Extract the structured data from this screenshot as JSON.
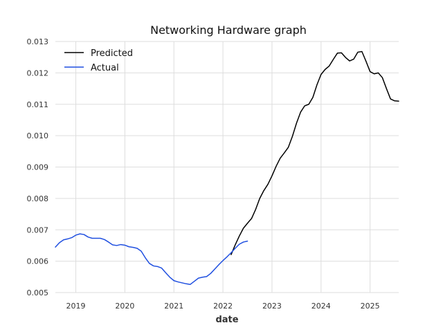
{
  "chart_data": {
    "type": "line",
    "title": "Networking Hardware graph",
    "xlabel": "date",
    "ylabel": "",
    "x_ticks": [
      "2019",
      "2020",
      "2021",
      "2022",
      "2023",
      "2024",
      "2025"
    ],
    "y_ticks": [
      "0.005",
      "0.006",
      "0.007",
      "0.008",
      "0.009",
      "0.010",
      "0.011",
      "0.012",
      "0.013"
    ],
    "xlim": [
      "2018-08",
      "2025-08"
    ],
    "ylim": [
      0.005,
      0.013
    ],
    "grid": true,
    "legend_position": "top-left",
    "series": [
      {
        "name": "Predicted",
        "color": "#000000",
        "x": [
          "2022-03",
          "2022-04",
          "2022-05",
          "2022-06",
          "2022-07",
          "2022-08",
          "2022-09",
          "2022-10",
          "2022-11",
          "2022-12",
          "2023-01",
          "2023-02",
          "2023-03",
          "2023-04",
          "2023-05",
          "2023-06",
          "2023-07",
          "2023-08",
          "2023-09",
          "2023-10",
          "2023-11",
          "2023-12",
          "2024-01",
          "2024-02",
          "2024-03",
          "2024-04",
          "2024-05",
          "2024-06",
          "2024-07",
          "2024-08",
          "2024-09",
          "2024-10",
          "2024-11",
          "2024-12",
          "2025-01",
          "2025-02",
          "2025-03",
          "2025-04",
          "2025-05",
          "2025-06",
          "2025-07",
          "2025-08"
        ],
        "values": [
          0.00621,
          0.00652,
          0.0068,
          0.00705,
          0.00721,
          0.00736,
          0.00765,
          0.008,
          0.00825,
          0.00845,
          0.00872,
          0.00902,
          0.00928,
          0.00945,
          0.00963,
          0.00998,
          0.0104,
          0.01075,
          0.01095,
          0.011,
          0.01122,
          0.01162,
          0.01195,
          0.01211,
          0.01222,
          0.01243,
          0.01263,
          0.01264,
          0.01249,
          0.01238,
          0.01244,
          0.01266,
          0.01268,
          0.01237,
          0.01204,
          0.01197,
          0.012,
          0.01185,
          0.0115,
          0.01117,
          0.01111,
          0.0111
        ]
      },
      {
        "name": "Actual",
        "color": "#1f4fe0",
        "x": [
          "2018-08",
          "2018-09",
          "2018-10",
          "2018-11",
          "2018-12",
          "2019-01",
          "2019-02",
          "2019-03",
          "2019-04",
          "2019-05",
          "2019-06",
          "2019-07",
          "2019-08",
          "2019-09",
          "2019-10",
          "2019-11",
          "2019-12",
          "2020-01",
          "2020-02",
          "2020-03",
          "2020-04",
          "2020-05",
          "2020-06",
          "2020-07",
          "2020-08",
          "2020-09",
          "2020-10",
          "2020-11",
          "2020-12",
          "2021-01",
          "2021-02",
          "2021-03",
          "2021-04",
          "2021-05",
          "2021-06",
          "2021-07",
          "2021-08",
          "2021-09",
          "2021-10",
          "2021-11",
          "2021-12",
          "2022-01",
          "2022-02",
          "2022-03",
          "2022-04",
          "2022-05",
          "2022-06",
          "2022-07"
        ],
        "values": [
          0.00645,
          0.00659,
          0.00668,
          0.00671,
          0.00675,
          0.00683,
          0.00687,
          0.00685,
          0.00677,
          0.00673,
          0.00673,
          0.00673,
          0.00669,
          0.00661,
          0.00652,
          0.0065,
          0.00653,
          0.00651,
          0.00646,
          0.00644,
          0.00641,
          0.00632,
          0.00611,
          0.00593,
          0.00585,
          0.00583,
          0.00578,
          0.00563,
          0.00549,
          0.00538,
          0.00534,
          0.00531,
          0.00528,
          0.00526,
          0.00536,
          0.00546,
          0.00549,
          0.00551,
          0.00561,
          0.00575,
          0.00589,
          0.00602,
          0.00614,
          0.00627,
          0.00641,
          0.00654,
          0.00661,
          0.00664
        ]
      }
    ]
  }
}
